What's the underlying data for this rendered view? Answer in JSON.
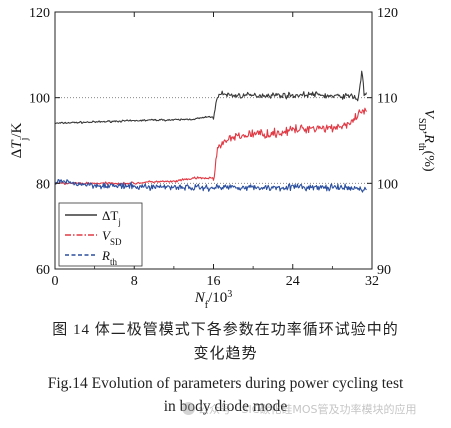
{
  "chart_data": {
    "type": "line",
    "xlabel": "N_f/10^3",
    "ylabel_left": "ΔT_j/K",
    "ylabel_right": "V_SD, R_th(%)",
    "x_ticks": [
      "0",
      "8",
      "16",
      "24",
      "32"
    ],
    "y_left_ticks": [
      "60",
      "80",
      "100",
      "120"
    ],
    "y_right_ticks": [
      "90",
      "100",
      "110",
      "120"
    ],
    "xlim": [
      0,
      32
    ],
    "ylim_left": [
      60,
      120
    ],
    "ylim_right": [
      90,
      120
    ],
    "grid": "dotted reference lines at 100 K and 80 K",
    "legend_position": "lower-left",
    "series": [
      {
        "name": "ΔT_j",
        "axis": "left",
        "color": "#3a3a3a",
        "dash": "solid",
        "x": [
          0,
          2,
          4,
          6,
          8,
          10,
          12,
          14,
          15.5,
          16,
          16.5,
          18,
          20,
          22,
          24,
          26,
          28,
          30,
          30.6,
          31,
          31.2,
          31.5
        ],
        "values": [
          94,
          94.2,
          94.3,
          94.5,
          94.6,
          94.8,
          94.8,
          95,
          95.5,
          95.5,
          101,
          100.5,
          100.5,
          100.6,
          100.5,
          100.8,
          100.3,
          100.4,
          99.5,
          106.5,
          101,
          100.5
        ]
      },
      {
        "name": "V_SD",
        "axis": "right",
        "color": "#e03a45",
        "dash": "dash-dot",
        "x": [
          0,
          4,
          8,
          10,
          12,
          14,
          15.5,
          16,
          16.5,
          18,
          20,
          22,
          24,
          26,
          28,
          30,
          31,
          31.5
        ],
        "values": [
          100,
          100,
          100,
          100.2,
          100.2,
          100.6,
          100.6,
          100.6,
          104.5,
          105.3,
          105.8,
          105.8,
          106.2,
          106.5,
          106.5,
          107,
          108.5,
          108
        ]
      },
      {
        "name": "R_th",
        "axis": "right",
        "color": "#2b4f9e",
        "dash": "dashed",
        "x": [
          0,
          2,
          4,
          6,
          8,
          10,
          12,
          14,
          16,
          18,
          20,
          22,
          24,
          26,
          28,
          30,
          31.5
        ],
        "values": [
          100.2,
          100.0,
          99.8,
          99.7,
          99.6,
          99.6,
          99.6,
          99.5,
          99.5,
          99.6,
          99.5,
          99.5,
          99.6,
          99.5,
          99.5,
          99.4,
          99.3
        ]
      }
    ]
  },
  "legend": {
    "items": [
      {
        "base": "ΔT",
        "sub": "j"
      },
      {
        "base": "V",
        "sub": "SD"
      },
      {
        "base": "R",
        "sub": "th"
      }
    ]
  },
  "caption": {
    "cn_line1": "图 14   体二极管模式下各参数在功率循环试验中的",
    "cn_line2": "变化趋势",
    "en_line1": "Fig.14    Evolution of parameters during power cycling test",
    "en_line2": "in body diode mode"
  },
  "watermark": "公众号 · SIC碳化硅MOS管及功率模块的应用"
}
